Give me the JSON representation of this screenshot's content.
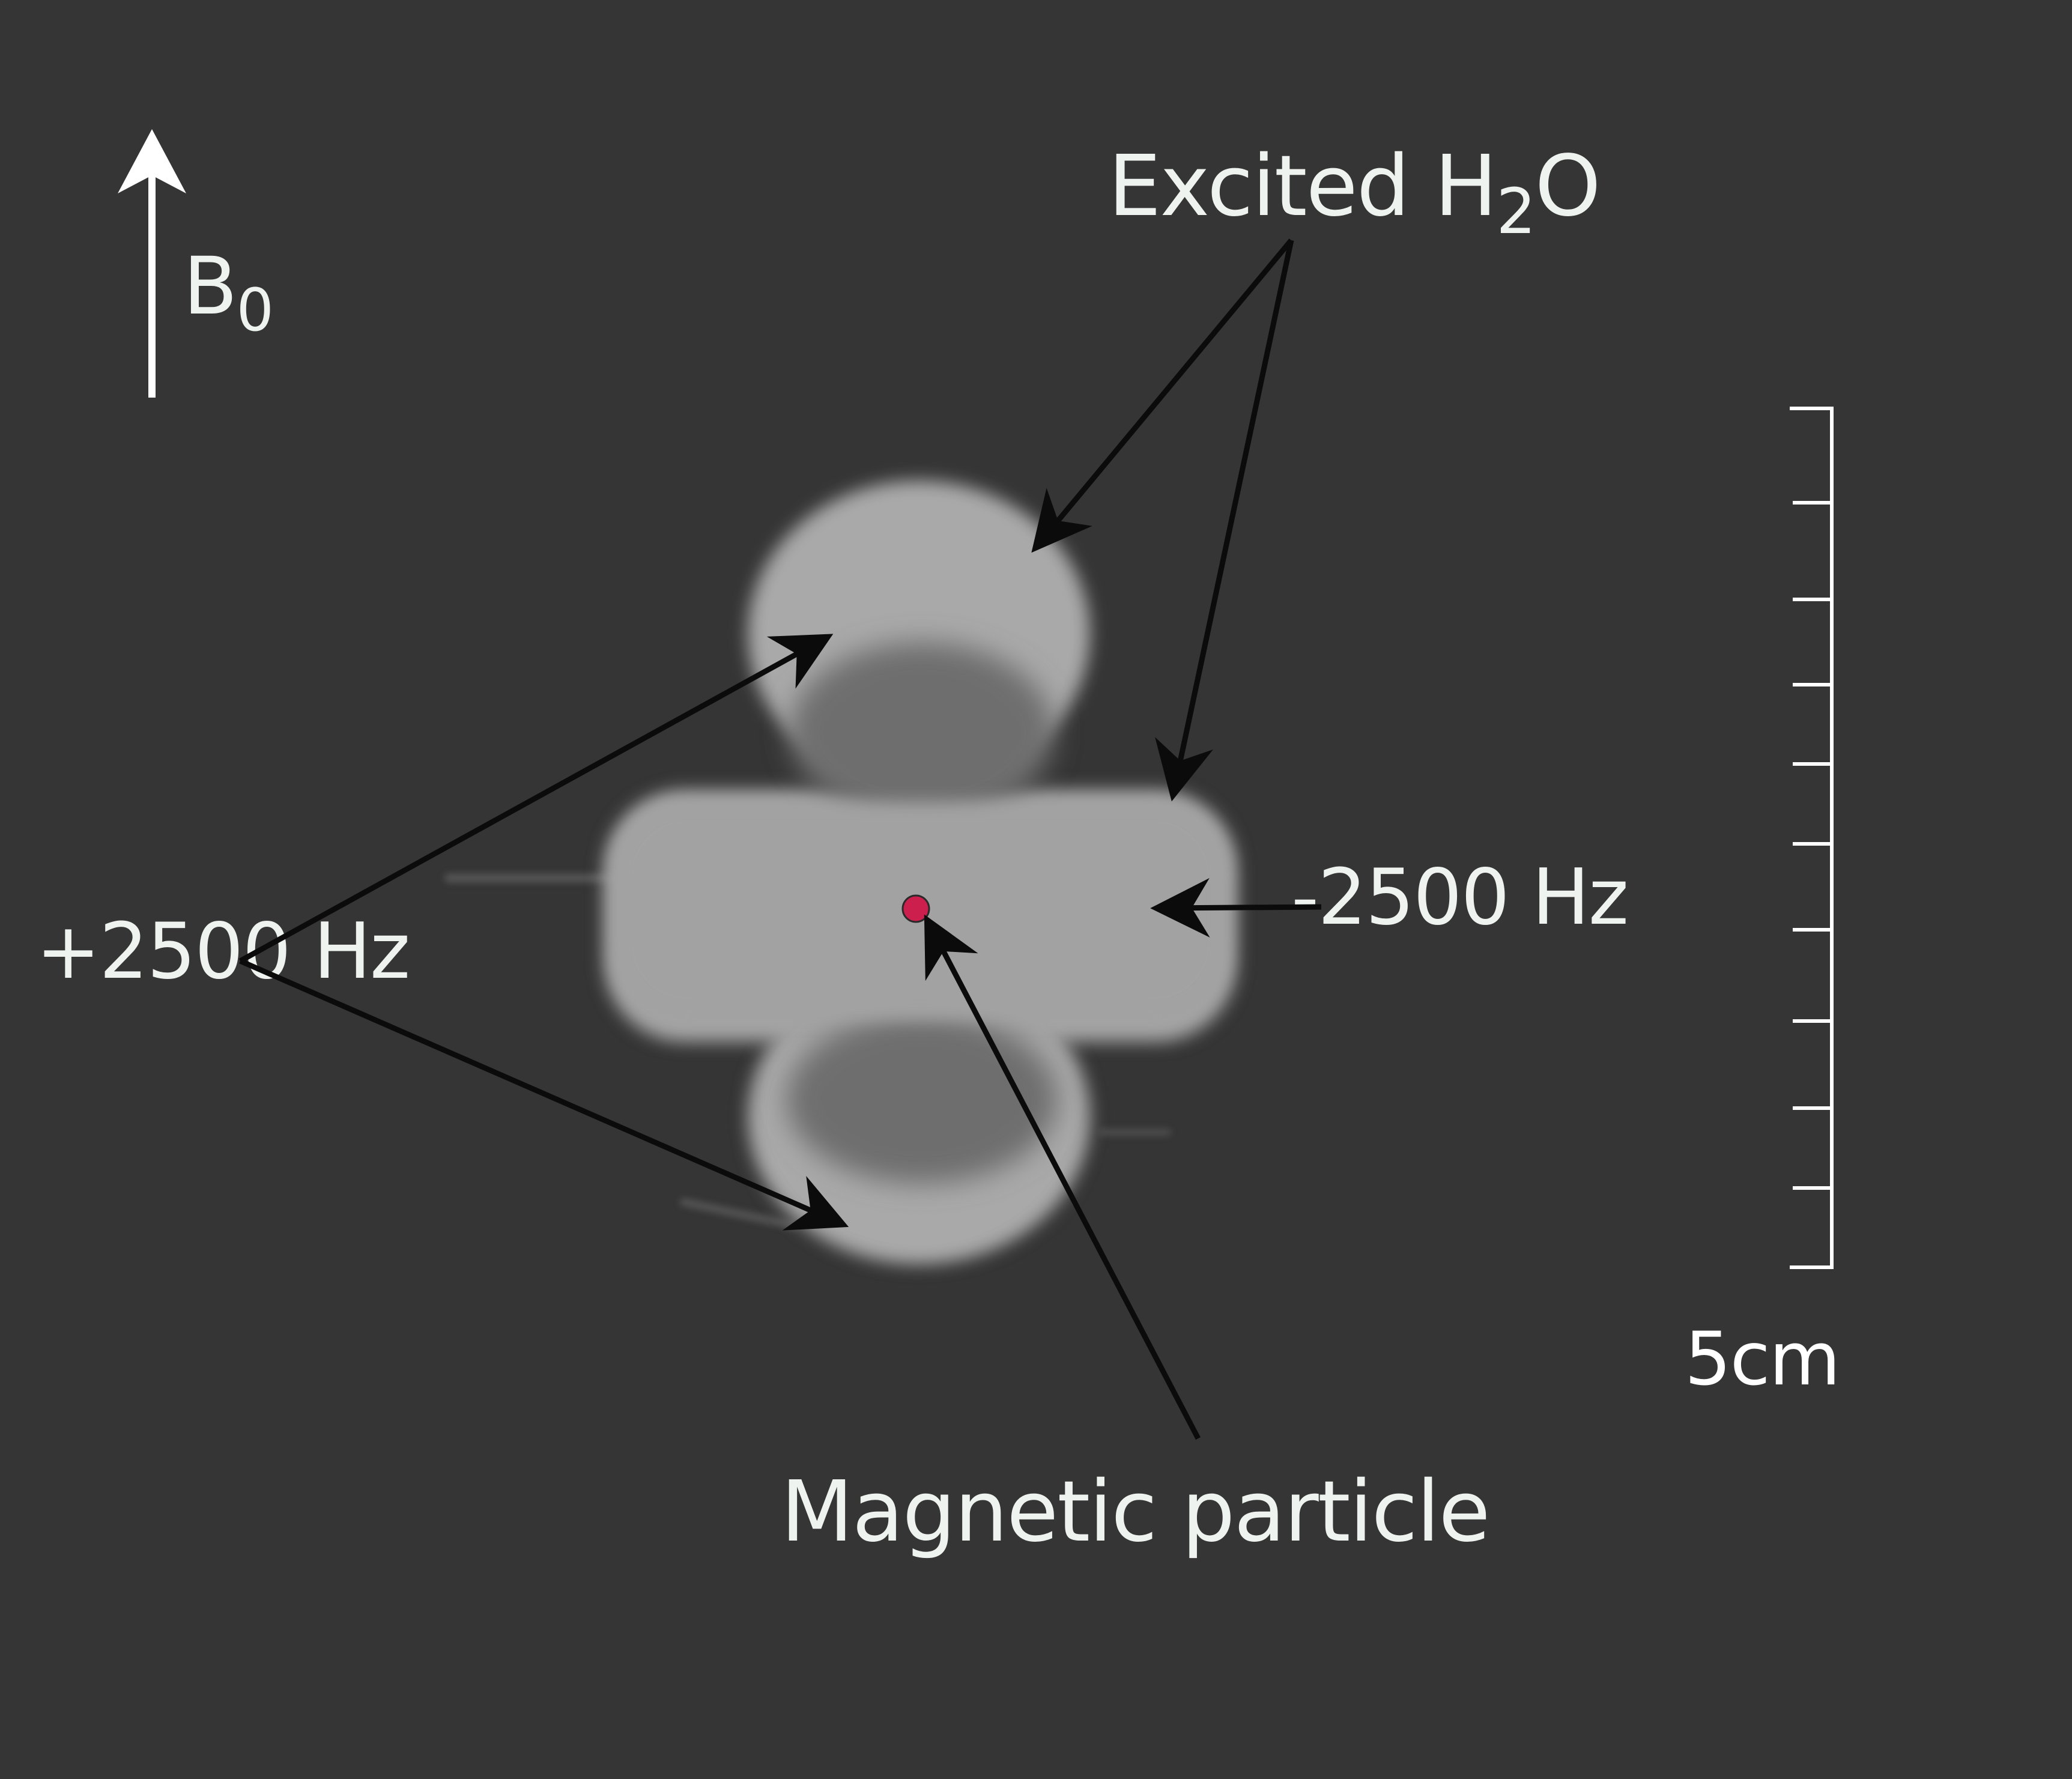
{
  "labels": {
    "b0_main": "B",
    "b0_sub": "0",
    "excited_main": "Excited H",
    "excited_sub": "2",
    "excited_tail": "O",
    "plus_freq": "+2500 Hz",
    "minus_freq": "-2500 Hz",
    "particle": "Magnetic particle",
    "scale": "5cm"
  },
  "colors": {
    "background": "#353535",
    "lobe": "#a9a9a9",
    "lobe_inner": "#6e6e6e",
    "particle": "#cc1f4e",
    "arrow": "#0b0b0b",
    "text": "#eef3f0"
  },
  "icons": {
    "field_arrow": "up-arrow-icon",
    "particle_marker": "dot-icon"
  }
}
